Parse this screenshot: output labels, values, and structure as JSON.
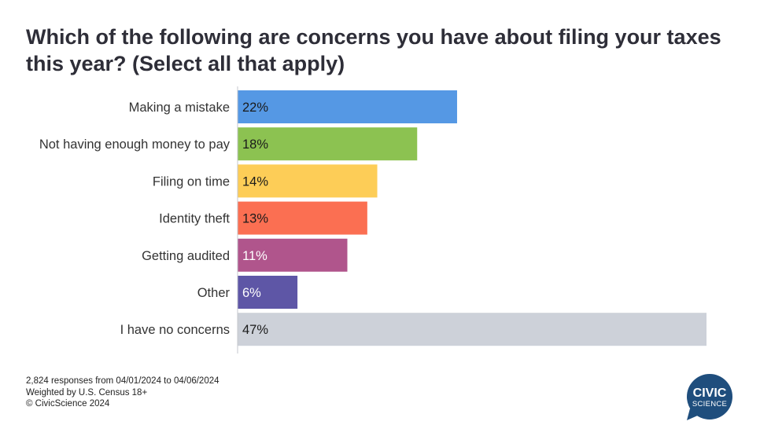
{
  "header": {
    "title": "Which of the following are concerns you have about filing your taxes this year? (Select all that apply)"
  },
  "chart_data": {
    "type": "bar",
    "orientation": "horizontal",
    "title": "Which of the following are concerns you have about filing your taxes this year? (Select all that apply)",
    "xlabel": "",
    "ylabel": "",
    "xlim": [
      0,
      47
    ],
    "grid": false,
    "legend": "none",
    "categories": [
      "Making a mistake",
      "Not having enough money to pay",
      "Filing on time",
      "Identity theft",
      "Getting audited",
      "Other",
      "I have no concerns"
    ],
    "values": [
      22,
      18,
      14,
      13,
      11,
      6,
      47
    ],
    "value_labels": [
      "22%",
      "18%",
      "14%",
      "13%",
      "11%",
      "6%",
      "47%"
    ],
    "colors": [
      "#5598e4",
      "#8cc251",
      "#fdcd57",
      "#fb6f52",
      "#b0558c",
      "#5e56a6",
      "#cdd1d9"
    ],
    "label_colors": [
      "#1a1a1a",
      "#1a1a1a",
      "#1a1a1a",
      "#1a1a1a",
      "#ffffff",
      "#ffffff",
      "#1a1a1a"
    ]
  },
  "footer": {
    "lines": [
      "2,824 responses from 04/01/2024 to 04/06/2024",
      "Weighted by U.S. Census 18+",
      "© CivicScience 2024"
    ]
  },
  "logo": {
    "line1": "CIVIC",
    "line2": "SCIENCE",
    "color": "#1f4e7d",
    "icon": "speech-bubble-logo-icon"
  }
}
